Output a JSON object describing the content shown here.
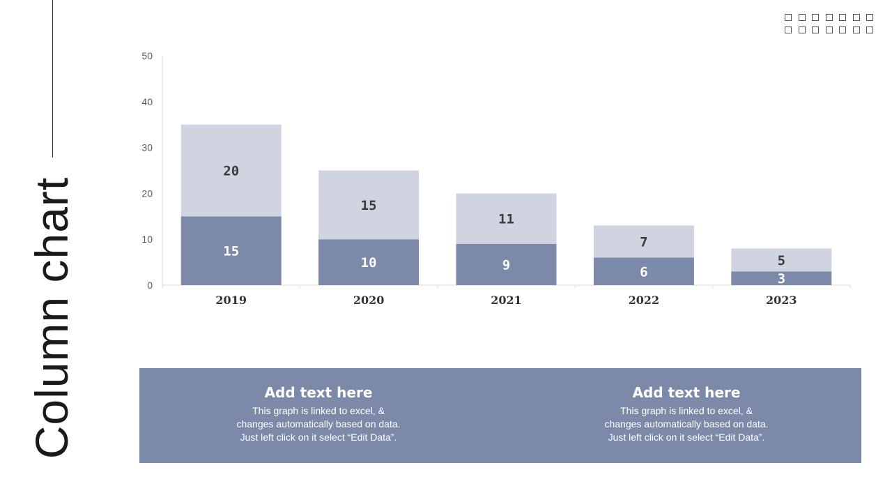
{
  "slide": {
    "title": "Column chart"
  },
  "colors": {
    "bottom_series": "#7d89a9",
    "top_series": "#d0d4e0",
    "panel": "#7d89a9",
    "axis_text": "#595959",
    "label_dark": "#3a3a3a",
    "label_light": "#ffffff"
  },
  "decoration": {
    "icon": "square-grid-icon",
    "rows": 2,
    "cols": 7
  },
  "chart_data": {
    "type": "bar",
    "stacked": true,
    "categories": [
      "2019",
      "2020",
      "2021",
      "2022",
      "2023"
    ],
    "series": [
      {
        "values": [
          15,
          10,
          9,
          6,
          3
        ],
        "color": "#7d89a9"
      },
      {
        "values": [
          20,
          15,
          11,
          7,
          5
        ],
        "color": "#d0d4e0"
      }
    ],
    "ylim": [
      0,
      50
    ],
    "yticks": [
      0,
      10,
      20,
      30,
      40,
      50
    ],
    "grid": false,
    "legend": "none"
  },
  "panel": {
    "left": {
      "heading": "Add text here",
      "lines": [
        "This graph is linked to excel, &",
        "changes automatically based on data.",
        "Just left click on it select “Edit Data”."
      ]
    },
    "right": {
      "heading": "Add text here",
      "lines": [
        "This graph is linked to excel, &",
        "changes automatically based on data.",
        "Just left click on it select “Edit Data”."
      ]
    }
  }
}
